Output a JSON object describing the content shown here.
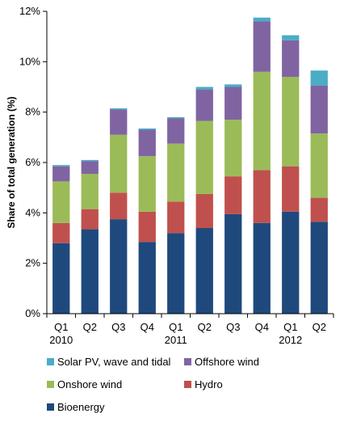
{
  "chart_data": {
    "type": "bar",
    "stacked": true,
    "ylabel": "Share of total generation (%)",
    "ylim": [
      0,
      12
    ],
    "yticks": [
      "0%",
      "2%",
      "4%",
      "6%",
      "8%",
      "10%",
      "12%"
    ],
    "categories": [
      "Q1 2010",
      "Q2",
      "Q3",
      "Q4",
      "Q1 2011",
      "Q2",
      "Q3",
      "Q4",
      "Q1 2012",
      "Q2"
    ],
    "category_labels": [
      [
        "Q1",
        "2010"
      ],
      [
        "Q2",
        ""
      ],
      [
        "Q3",
        ""
      ],
      [
        "Q4",
        ""
      ],
      [
        "Q1",
        "2011"
      ],
      [
        "Q2",
        ""
      ],
      [
        "Q3",
        ""
      ],
      [
        "Q4",
        ""
      ],
      [
        "Q1",
        "2012"
      ],
      [
        "Q2",
        ""
      ]
    ],
    "series": [
      {
        "name": "Bioenergy",
        "color": "#1F497D",
        "values": [
          2.8,
          3.35,
          3.75,
          2.85,
          3.2,
          3.4,
          3.95,
          3.6,
          4.05,
          3.65
        ]
      },
      {
        "name": "Hydro",
        "color": "#C0504D",
        "values": [
          0.8,
          0.8,
          1.05,
          1.2,
          1.25,
          1.35,
          1.5,
          2.1,
          1.8,
          0.95
        ]
      },
      {
        "name": "Onshore wind",
        "color": "#9BBB59",
        "values": [
          1.65,
          1.4,
          2.3,
          2.2,
          2.3,
          2.9,
          2.25,
          3.9,
          3.55,
          2.55
        ]
      },
      {
        "name": "Offshore wind",
        "color": "#8064A2",
        "values": [
          0.6,
          0.5,
          1.0,
          1.05,
          1.0,
          1.25,
          1.3,
          2.0,
          1.45,
          1.9
        ]
      },
      {
        "name": "Solar PV, wave and tidal",
        "color": "#4BACC6",
        "values": [
          0.05,
          0.05,
          0.05,
          0.05,
          0.05,
          0.1,
          0.1,
          0.15,
          0.2,
          0.6
        ]
      }
    ],
    "legend": {
      "placement": "bottom",
      "order": [
        "Solar PV, wave and tidal",
        "Offshore wind",
        "Onshore wind",
        "Hydro",
        "Bioenergy"
      ]
    },
    "grid": false
  }
}
